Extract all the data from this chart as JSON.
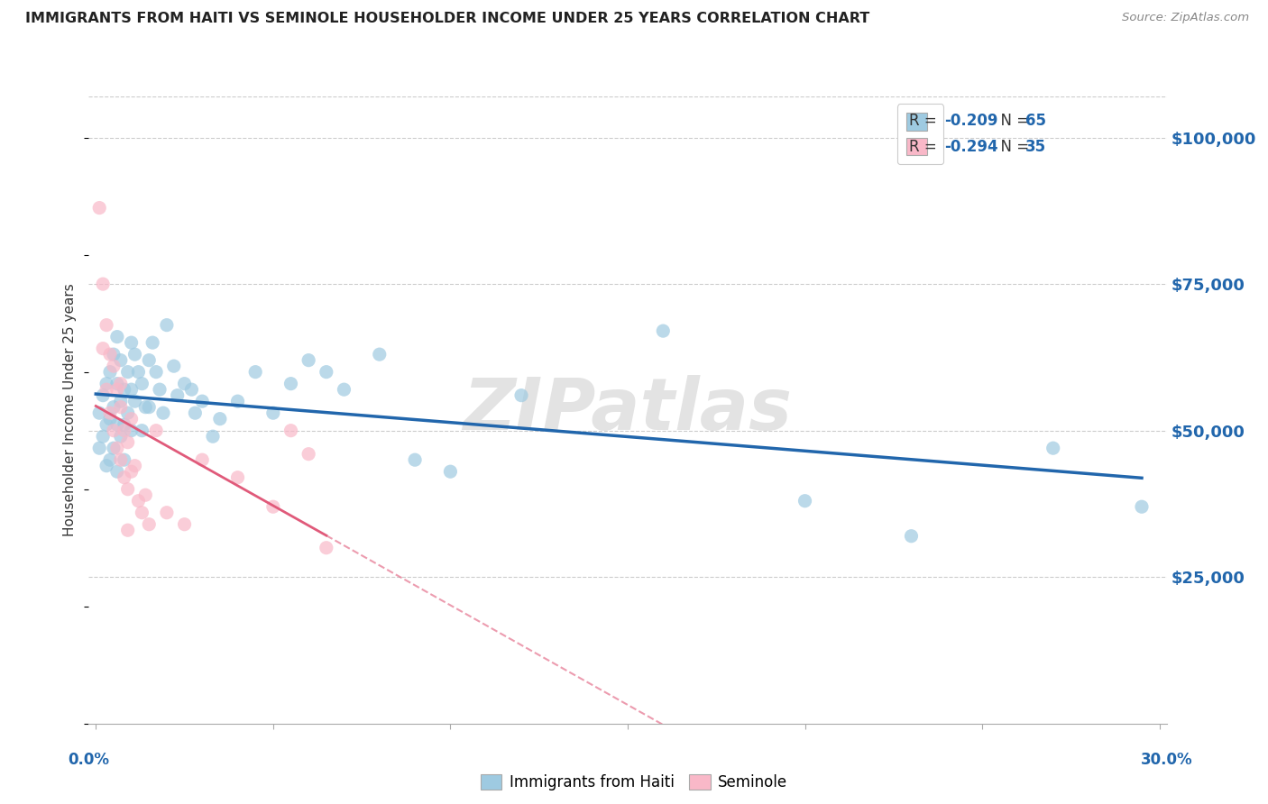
{
  "title": "IMMIGRANTS FROM HAITI VS SEMINOLE HOUSEHOLDER INCOME UNDER 25 YEARS CORRELATION CHART",
  "source": "Source: ZipAtlas.com",
  "ylabel": "Householder Income Under 25 years",
  "legend_label1": "Immigrants from Haiti",
  "legend_label2": "Seminole",
  "color_haiti": "#9ecae1",
  "color_seminole": "#f9b8c8",
  "color_haiti_line": "#2166ac",
  "color_seminole_line": "#e05a7a",
  "watermark": "ZIPatlas",
  "xlim": [
    -0.002,
    0.302
  ],
  "ylim": [
    0,
    107000
  ],
  "yticks": [
    25000,
    50000,
    75000,
    100000
  ],
  "ytick_labels": [
    "$25,000",
    "$50,000",
    "$75,000",
    "$100,000"
  ],
  "xticks": [
    0.0,
    0.05,
    0.1,
    0.15,
    0.2,
    0.25,
    0.3
  ],
  "haiti_x": [
    0.001,
    0.001,
    0.002,
    0.002,
    0.003,
    0.003,
    0.003,
    0.004,
    0.004,
    0.004,
    0.005,
    0.005,
    0.005,
    0.006,
    0.006,
    0.006,
    0.006,
    0.007,
    0.007,
    0.007,
    0.008,
    0.008,
    0.008,
    0.009,
    0.009,
    0.01,
    0.01,
    0.01,
    0.011,
    0.011,
    0.012,
    0.013,
    0.013,
    0.014,
    0.015,
    0.015,
    0.016,
    0.017,
    0.018,
    0.019,
    0.02,
    0.022,
    0.023,
    0.025,
    0.027,
    0.028,
    0.03,
    0.033,
    0.035,
    0.04,
    0.045,
    0.05,
    0.055,
    0.06,
    0.065,
    0.07,
    0.08,
    0.09,
    0.1,
    0.12,
    0.16,
    0.2,
    0.23,
    0.27,
    0.295
  ],
  "haiti_y": [
    53000,
    47000,
    56000,
    49000,
    58000,
    51000,
    44000,
    60000,
    52000,
    45000,
    63000,
    54000,
    47000,
    66000,
    58000,
    51000,
    43000,
    62000,
    55000,
    49000,
    57000,
    51000,
    45000,
    60000,
    53000,
    65000,
    57000,
    50000,
    63000,
    55000,
    60000,
    58000,
    50000,
    54000,
    62000,
    54000,
    65000,
    60000,
    57000,
    53000,
    68000,
    61000,
    56000,
    58000,
    57000,
    53000,
    55000,
    49000,
    52000,
    55000,
    60000,
    53000,
    58000,
    62000,
    60000,
    57000,
    63000,
    45000,
    43000,
    56000,
    67000,
    38000,
    32000,
    47000,
    37000
  ],
  "seminole_x": [
    0.001,
    0.002,
    0.002,
    0.003,
    0.003,
    0.004,
    0.004,
    0.005,
    0.005,
    0.006,
    0.006,
    0.007,
    0.007,
    0.007,
    0.008,
    0.008,
    0.009,
    0.009,
    0.009,
    0.01,
    0.01,
    0.011,
    0.012,
    0.013,
    0.014,
    0.015,
    0.017,
    0.02,
    0.025,
    0.03,
    0.04,
    0.05,
    0.055,
    0.06,
    0.065
  ],
  "seminole_y": [
    88000,
    75000,
    64000,
    68000,
    57000,
    63000,
    53000,
    61000,
    50000,
    57000,
    47000,
    54000,
    45000,
    58000,
    42000,
    50000,
    48000,
    40000,
    33000,
    52000,
    43000,
    44000,
    38000,
    36000,
    39000,
    34000,
    50000,
    36000,
    34000,
    45000,
    42000,
    37000,
    50000,
    46000,
    30000
  ],
  "seminole_line_solid_end": 0.065,
  "haiti_line_start": 0.0,
  "haiti_line_end": 0.295
}
